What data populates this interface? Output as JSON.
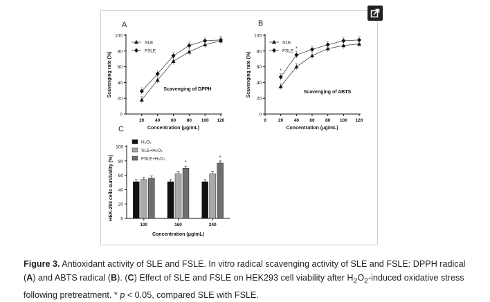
{
  "chart_data": [
    {
      "type": "line",
      "panel": "A",
      "title": "Scavenging of DPPH",
      "xlabel": "Concentration (μg/mL)",
      "ylabel": "Scavenging rate (%)",
      "x": [
        20,
        40,
        60,
        80,
        100,
        120
      ],
      "xlim": [
        0,
        120
      ],
      "ylim": [
        0,
        100
      ],
      "xticks": [
        "20",
        "40",
        "60",
        "80",
        "100",
        "120"
      ],
      "yticks": [
        "0",
        "20",
        "40",
        "60",
        "80",
        "100"
      ],
      "legend_position": "top-left",
      "series": [
        {
          "name": "SLE",
          "marker": "triangle",
          "values": [
            18,
            43,
            67,
            79,
            88,
            93
          ]
        },
        {
          "name": "FSLE",
          "marker": "diamond",
          "values": [
            29,
            51,
            74,
            87,
            93,
            94
          ]
        }
      ]
    },
    {
      "type": "line",
      "panel": "B",
      "title": "Scavenging of ABTS",
      "xlabel": "Concentration (μg/mL)",
      "ylabel": "Scavenging rate (%)",
      "x": [
        20,
        40,
        60,
        80,
        100,
        120
      ],
      "xlim": [
        0,
        120
      ],
      "ylim": [
        0,
        100
      ],
      "xticks": [
        "0",
        "20",
        "40",
        "60",
        "80",
        "100",
        "120"
      ],
      "yticks": [
        "0",
        "20",
        "40",
        "60",
        "80",
        "100"
      ],
      "legend_position": "top-left",
      "series": [
        {
          "name": "SLE",
          "marker": "triangle",
          "values": [
            35,
            60,
            74,
            83,
            87,
            89
          ]
        },
        {
          "name": "FSLE",
          "marker": "diamond",
          "values": [
            47,
            75,
            82,
            88,
            93,
            94
          ]
        }
      ],
      "annotations": [
        "*",
        "*"
      ]
    },
    {
      "type": "bar",
      "panel": "C",
      "xlabel": "Concentration (μg/mL)",
      "ylabel": "HEK-293 cells survivality (%)",
      "categories": [
        "100",
        "160",
        "240"
      ],
      "ylim": [
        0,
        100
      ],
      "yticks": [
        "0",
        "20",
        "40",
        "60",
        "80",
        "100"
      ],
      "legend_position": "top-left",
      "series": [
        {
          "name": "H₂O₂",
          "color": "#111111",
          "values": [
            51,
            51,
            51
          ]
        },
        {
          "name": "SLE+H₂O₂",
          "color": "#a9a9a9",
          "values": [
            54,
            62,
            62
          ]
        },
        {
          "name": "FSLE+H₂O₂",
          "color": "#6e6e6e",
          "values": [
            56,
            70,
            77
          ]
        }
      ],
      "annotations": [
        "*",
        "*"
      ]
    }
  ],
  "panel_labels": [
    "A",
    "B",
    "C"
  ],
  "caption": {
    "label": "Figure 3.",
    "t1": " Antioxidant activity of SLE and FSLE. In vitro radical scavenging activity of SLE and FSLE: DPPH radical (",
    "a": "A",
    "t2": ") and ABTS radical (",
    "b": "B",
    "t3": "). (",
    "c": "C",
    "t4": ") Effect of SLE and FSLE on HEK293 cell viability after H",
    "sub1": "2",
    "t5": "O",
    "sub2": "2",
    "t6": "-induced oxidative stress following pretreatment. * ",
    "p": "p",
    "t7": " < 0.05, compared SLE with FSLE."
  },
  "icons": {
    "expand": "expand-icon"
  }
}
